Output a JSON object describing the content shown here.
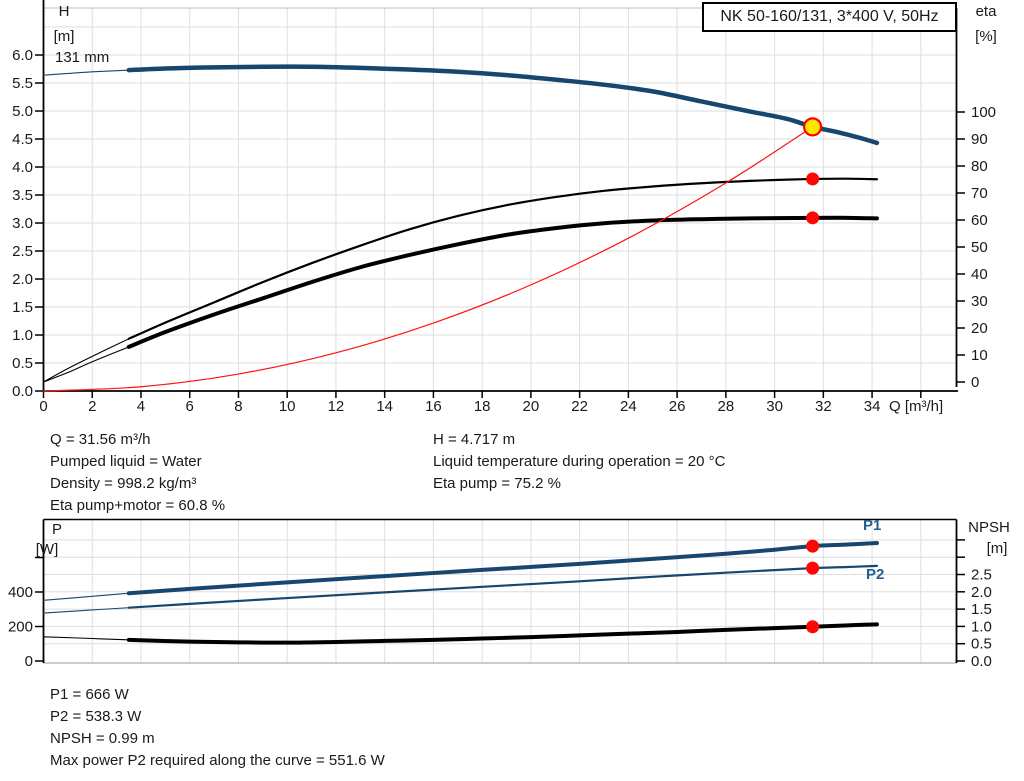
{
  "title_box": "NK 50-160/131, 3*400 V, 50Hz",
  "impeller_label": "131 mm",
  "top_chart": {
    "y_left": {
      "title": "H",
      "unit": "[m]",
      "ticks": [
        "6.0",
        "5.5",
        "5.0",
        "4.5",
        "4.0",
        "3.5",
        "3.0",
        "2.5",
        "2.0",
        "1.5",
        "1.0",
        "0.5",
        "0.0"
      ]
    },
    "y_right": {
      "title": "eta",
      "unit": "[%]",
      "ticks": [
        "100",
        "90",
        "80",
        "70",
        "60",
        "50",
        "40",
        "30",
        "20",
        "10",
        "0"
      ]
    },
    "x": {
      "label": "Q [m³/h]",
      "ticks": [
        "0",
        "2",
        "4",
        "6",
        "8",
        "10",
        "12",
        "14",
        "16",
        "18",
        "20",
        "22",
        "24",
        "26",
        "28",
        "30",
        "32",
        "34"
      ]
    }
  },
  "bottom_chart": {
    "y_left": {
      "title": "P",
      "unit": "[W]",
      "ticks": [
        "400",
        "200",
        "0"
      ]
    },
    "y_right": {
      "title": "NPSH",
      "unit": "[m]",
      "ticks": [
        "2.5",
        "2.0",
        "1.5",
        "1.0",
        "0.5",
        "0.0"
      ]
    },
    "p1_label": "P1",
    "p2_label": "P2"
  },
  "info_top": {
    "left": [
      "Q = 31.56 m³/h",
      "Pumped liquid = Water",
      "Density = 998.2 kg/m³",
      "Eta pump+motor = 60.8 %"
    ],
    "right": [
      "H = 4.717 m",
      "Liquid temperature during operation = 20 °C",
      "Eta pump = 75.2 %"
    ]
  },
  "info_bottom": [
    "P1 = 666 W",
    "P2 = 538.3 W",
    "NPSH = 0.99 m",
    "Max power P2 required along the curve = 551.6 W"
  ],
  "colors": {
    "curve_blue": "#17466F",
    "label_blue": "#255E91",
    "curve_red": "#FF1414",
    "dot_red": "#FF0505",
    "duty_yellow": "#FFE600",
    "grid": "#DEDEDE",
    "border_gray": "#AFAFAF",
    "axis_black": "#000000"
  },
  "chart_data": [
    {
      "type": "line",
      "title": "NK 50-160/131, 3*400 V, 50Hz",
      "x_label": "Q [m³/h]",
      "x_range": [
        0,
        37.4
      ],
      "y_left": {
        "label": "H [m]",
        "range": [
          0,
          6.84
        ],
        "tick_step": 0.5
      },
      "y_right": {
        "label": "eta [%]",
        "range": [
          0,
          100
        ],
        "tick_step": 10
      },
      "duty_point": {
        "Q": 31.56,
        "H": 4.717,
        "eta_pump": 75.2,
        "eta_pump_motor": 60.8
      },
      "series": [
        {
          "name": "head-curve-131mm",
          "axis": "left",
          "color_key": "curve_blue",
          "width": 4.5,
          "thin_until": 3.5,
          "points": [
            [
              0,
              5.64
            ],
            [
              1,
              5.67
            ],
            [
              2,
              5.7
            ],
            [
              3.5,
              5.73
            ],
            [
              5,
              5.76
            ],
            [
              7,
              5.78
            ],
            [
              9,
              5.79
            ],
            [
              11,
              5.79
            ],
            [
              13,
              5.77
            ],
            [
              15,
              5.74
            ],
            [
              17,
              5.7
            ],
            [
              19,
              5.64
            ],
            [
              21,
              5.56
            ],
            [
              23,
              5.47
            ],
            [
              25,
              5.35
            ],
            [
              27,
              5.17
            ],
            [
              29,
              4.99
            ],
            [
              30.5,
              4.86
            ],
            [
              31.56,
              4.717
            ],
            [
              32.5,
              4.63
            ],
            [
              33.5,
              4.52
            ],
            [
              34.2,
              4.43
            ]
          ]
        },
        {
          "name": "eta-pump-curve",
          "axis": "right",
          "color_key": "axis_black",
          "width": 2.2,
          "thin_until": 3.5,
          "points": [
            [
              0,
              0
            ],
            [
              1,
              5
            ],
            [
              2,
              9.5
            ],
            [
              3.5,
              16
            ],
            [
              5,
              22
            ],
            [
              7,
              29.5
            ],
            [
              9,
              37
            ],
            [
              11,
              44
            ],
            [
              13,
              50.5
            ],
            [
              15,
              56.5
            ],
            [
              17,
              61.5
            ],
            [
              19,
              65.5
            ],
            [
              21,
              68.5
            ],
            [
              23,
              70.8
            ],
            [
              25,
              72.4
            ],
            [
              27,
              73.6
            ],
            [
              29,
              74.5
            ],
            [
              31.56,
              75.2
            ],
            [
              33,
              75.3
            ],
            [
              34.2,
              75.1
            ]
          ]
        },
        {
          "name": "eta-pump-motor-curve",
          "axis": "right",
          "color_key": "axis_black",
          "width": 4,
          "thin_until": 3.5,
          "points": [
            [
              0,
              0
            ],
            [
              1,
              3.5
            ],
            [
              2,
              7.5
            ],
            [
              3.5,
              13
            ],
            [
              5,
              18.5
            ],
            [
              7,
              25
            ],
            [
              9,
              31
            ],
            [
              11,
              37
            ],
            [
              13,
              42.5
            ],
            [
              15,
              47
            ],
            [
              17,
              51
            ],
            [
              19,
              54.5
            ],
            [
              21,
              57
            ],
            [
              23,
              58.8
            ],
            [
              25,
              59.8
            ],
            [
              27,
              60.3
            ],
            [
              29,
              60.6
            ],
            [
              31.56,
              60.8
            ],
            [
              33,
              60.8
            ],
            [
              34.2,
              60.6
            ]
          ]
        },
        {
          "name": "system-curve",
          "axis": "left",
          "color_key": "curve_red",
          "width": 1.2,
          "points": [
            [
              0,
              0
            ],
            [
              4,
              0.076
            ],
            [
              8,
              0.303
            ],
            [
              12,
              0.682
            ],
            [
              16,
              1.213
            ],
            [
              20,
              1.895
            ],
            [
              24,
              2.729
            ],
            [
              28,
              3.714
            ],
            [
              31.56,
              4.717
            ]
          ]
        }
      ],
      "markers": [
        {
          "label": "duty point",
          "axis": "left",
          "Q": 31.56,
          "value": 4.717,
          "style": "duty"
        },
        {
          "label": "eta pump point",
          "axis": "right",
          "Q": 31.56,
          "value": 75.2,
          "style": "red"
        },
        {
          "label": "eta pump motor point",
          "axis": "right",
          "Q": 31.56,
          "value": 60.8,
          "style": "red"
        }
      ]
    },
    {
      "type": "line",
      "x_range": [
        0,
        37.4
      ],
      "y_left": {
        "label": "P [W]",
        "range": [
          0,
          830
        ],
        "tick_step": 200
      },
      "y_right": {
        "label": "NPSH [m]",
        "range": [
          0,
          4.1
        ],
        "tick_step": 0.5
      },
      "duty_values": {
        "P1": 666,
        "P2": 538.3,
        "NPSH": 0.99,
        "max_P2_along_curve": 551.6
      },
      "series": [
        {
          "name": "p1-curve",
          "axis": "left",
          "color_key": "curve_blue",
          "width": 4,
          "thin_until": 3.5,
          "points": [
            [
              0,
              352
            ],
            [
              2,
              375
            ],
            [
              3.5,
              393
            ],
            [
              6,
              418
            ],
            [
              10,
              456
            ],
            [
              14,
              492
            ],
            [
              18,
              528
            ],
            [
              22,
              563
            ],
            [
              25,
              592
            ],
            [
              28,
              622
            ],
            [
              30,
              645
            ],
            [
              31.56,
              666
            ],
            [
              33,
              675
            ],
            [
              34.2,
              684
            ]
          ]
        },
        {
          "name": "p2-curve",
          "axis": "left",
          "color_key": "curve_blue",
          "width": 2.2,
          "thin_until": 3.5,
          "points": [
            [
              0,
              278
            ],
            [
              2,
              296
            ],
            [
              3.5,
              309
            ],
            [
              6,
              331
            ],
            [
              10,
              365
            ],
            [
              14,
              398
            ],
            [
              18,
              430
            ],
            [
              22,
              462
            ],
            [
              25,
              488
            ],
            [
              28,
              512
            ],
            [
              30,
              527
            ],
            [
              31.56,
              538.3
            ],
            [
              33,
              545
            ],
            [
              34.2,
              551.6
            ]
          ]
        },
        {
          "name": "npsh-curve",
          "axis": "right",
          "color_key": "axis_black",
          "width": 4,
          "thin_until": 3.5,
          "points": [
            [
              0,
              0.7
            ],
            [
              2,
              0.65
            ],
            [
              3.5,
              0.61
            ],
            [
              6,
              0.56
            ],
            [
              8,
              0.54
            ],
            [
              10,
              0.53
            ],
            [
              12,
              0.55
            ],
            [
              14,
              0.58
            ],
            [
              16,
              0.61
            ],
            [
              18,
              0.65
            ],
            [
              20,
              0.69
            ],
            [
              22,
              0.74
            ],
            [
              24,
              0.79
            ],
            [
              26,
              0.84
            ],
            [
              28,
              0.9
            ],
            [
              30,
              0.95
            ],
            [
              31.56,
              0.99
            ],
            [
              33,
              1.03
            ],
            [
              34.2,
              1.06
            ]
          ]
        }
      ],
      "markers": [
        {
          "label": "p1 point",
          "axis": "left",
          "Q": 31.56,
          "value": 666,
          "style": "red"
        },
        {
          "label": "p2 point",
          "axis": "left",
          "Q": 31.56,
          "value": 538.3,
          "style": "red"
        },
        {
          "label": "npsh point",
          "axis": "right",
          "Q": 31.56,
          "value": 0.99,
          "style": "red"
        }
      ]
    }
  ]
}
